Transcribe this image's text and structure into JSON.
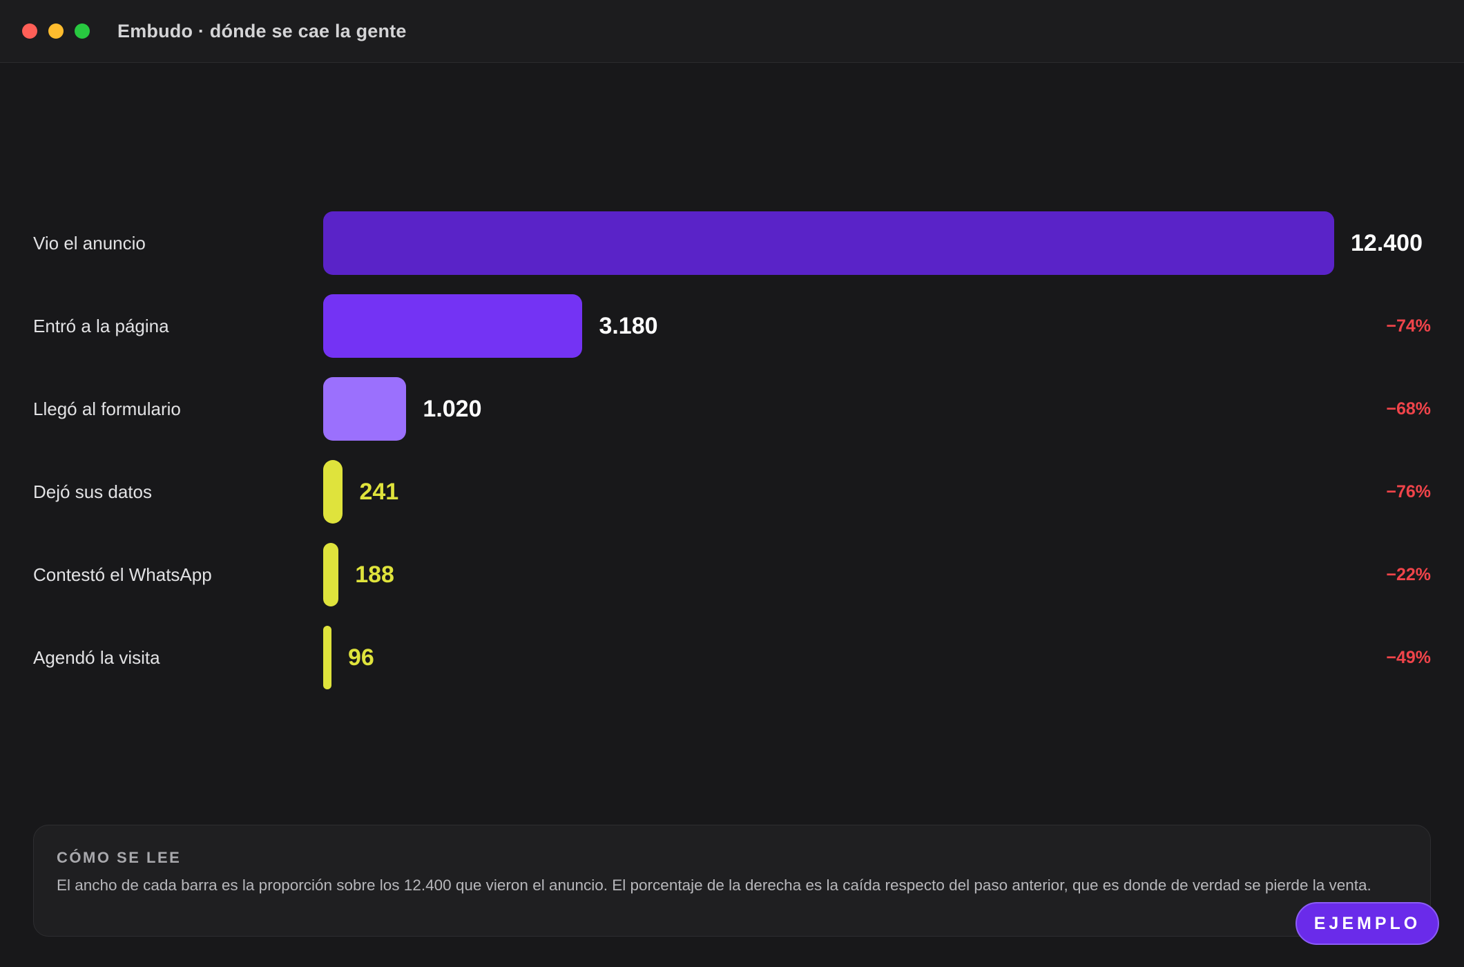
{
  "window": {
    "title": "Embudo · dónde se cae la gente"
  },
  "chart_data": {
    "type": "bar",
    "orientation": "horizontal",
    "categories": [
      "Vio el anuncio",
      "Entró a la página",
      "Llegó al formulario",
      "Dejó sus datos",
      "Contestó el WhatsApp",
      "Agendó la visita"
    ],
    "values": [
      12400,
      3180,
      1020,
      241,
      188,
      96
    ],
    "value_labels": [
      "12.400",
      "3.180",
      "1.020",
      "241",
      "188",
      "96"
    ],
    "drop_labels": [
      "",
      "−74%",
      "−68%",
      "−76%",
      "−22%",
      "−49%"
    ],
    "xlim": [
      0,
      12400
    ],
    "grid": false,
    "colors": {
      "bars": [
        "#5a23c8",
        "#7433f4",
        "#9b70fd",
        "#dfe33c",
        "#dfe33c",
        "#dfe33c"
      ],
      "value_text": [
        "#ffffff",
        "#ffffff",
        "#ffffff",
        "#dfe33c",
        "#dfe33c",
        "#dfe33c"
      ],
      "drop_text": "#f0444a"
    }
  },
  "note": {
    "title": "CÓMO SE LEE",
    "body": "El ancho de cada barra es la proporción sobre los 12.400 que vieron el anuncio. El porcentaje de la derecha es la caída respecto del paso anterior, que es donde de verdad se pierde la venta."
  },
  "badge": {
    "label": "EJEMPLO"
  }
}
